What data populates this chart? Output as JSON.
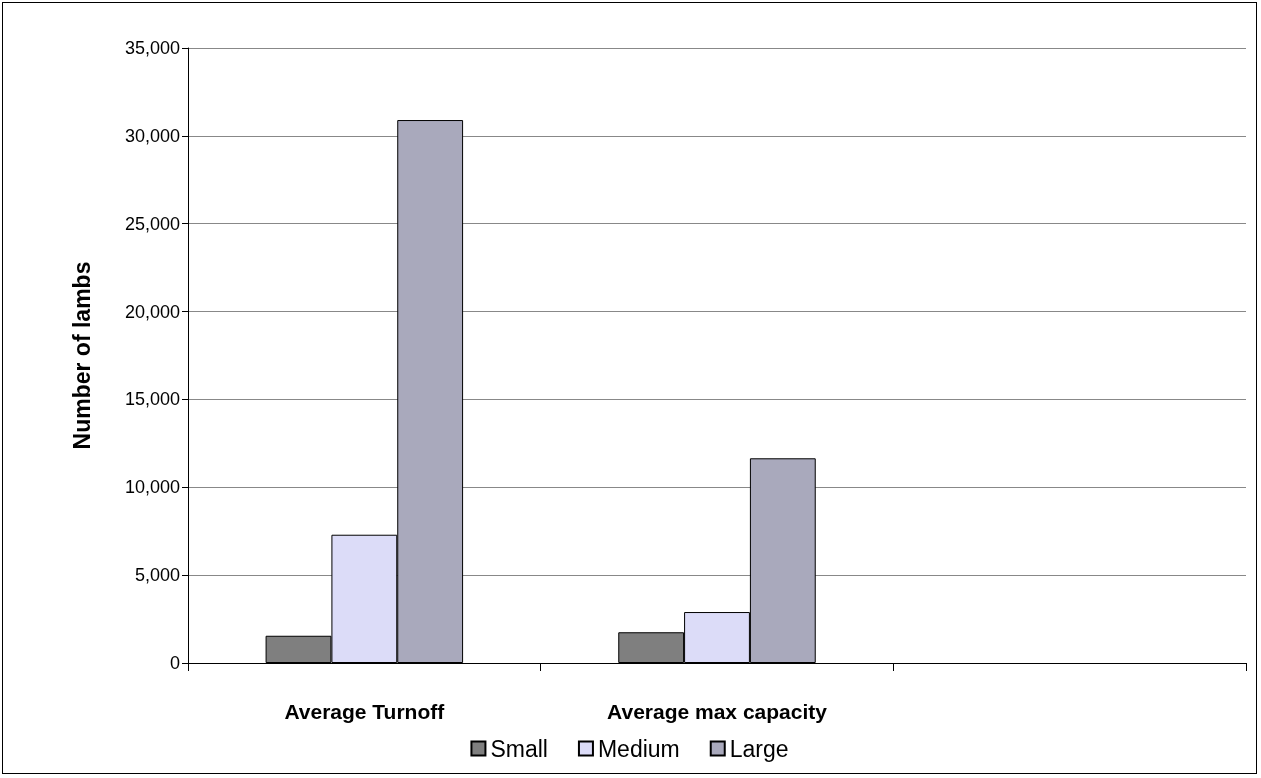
{
  "chart_data": {
    "type": "bar",
    "ylabel": "Number of lambs",
    "categories": [
      "Average Turnoff",
      "Average max capacity",
      null
    ],
    "series": [
      {
        "name": "Small",
        "color": "#7f7f7f",
        "values": [
          1550,
          1750,
          null
        ]
      },
      {
        "name": "Medium",
        "color": "#dcdcf8",
        "values": [
          7300,
          2900,
          null
        ]
      },
      {
        "name": "Large",
        "color": "#a9a9bc",
        "values": [
          30900,
          11650,
          null
        ]
      }
    ],
    "ylim": [
      0,
      35000
    ],
    "yticks": [
      0,
      {
        "value": 5000,
        "label": "5,000"
      },
      {
        "value": 10000,
        "label": "10,000"
      },
      {
        "value": 15000,
        "label": "15,000"
      },
      {
        "value": 20000,
        "label": "20,000"
      },
      {
        "value": 25000,
        "label": "25,000"
      },
      {
        "value": 30000,
        "label": "30,000"
      },
      {
        "value": 35000,
        "label": "35,000"
      }
    ],
    "grid": "y",
    "legend": "bottom"
  }
}
